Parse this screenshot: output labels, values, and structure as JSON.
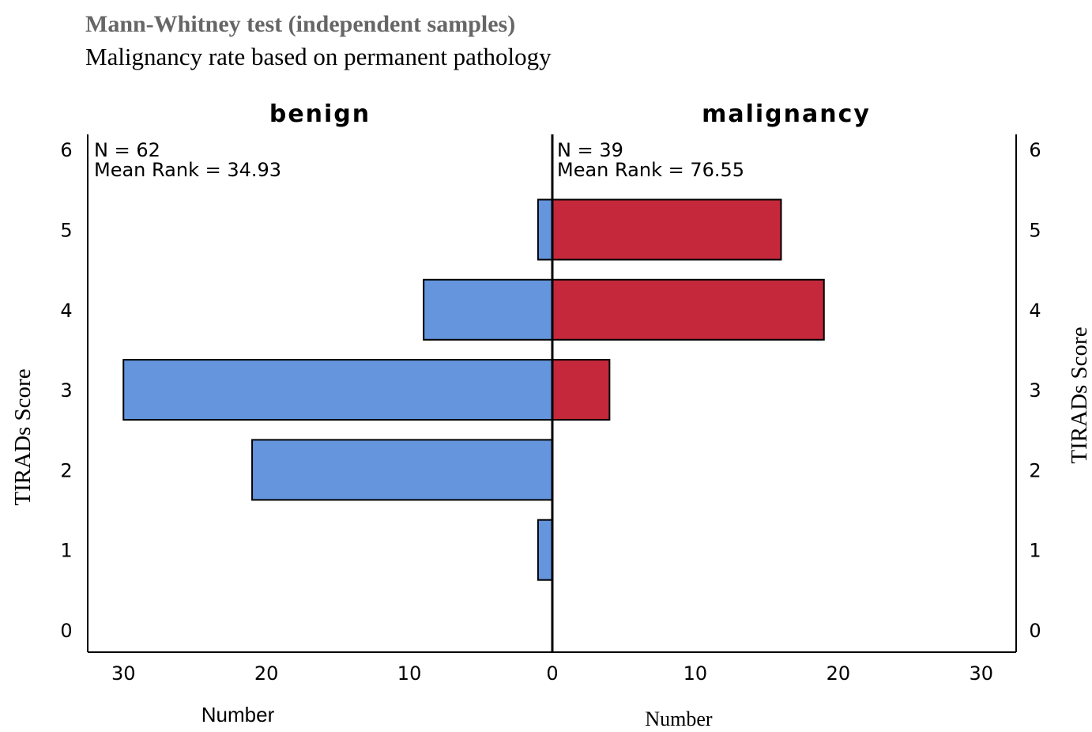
{
  "title": "Mann-Whitney test (independent samples)",
  "subtitle": "Malignancy rate based on permanent pathology",
  "chart_data": {
    "type": "bar",
    "orientation": "horizontal-population-pyramid",
    "ylabel": "TIRADs Score",
    "xlabel_left": "Number",
    "xlabel_right": "Number",
    "y_ticks": [
      "0",
      "1",
      "2",
      "3",
      "4",
      "5",
      "6"
    ],
    "x_ticks_left": [
      "30",
      "20",
      "10",
      "0"
    ],
    "x_ticks_right": [
      "0",
      "10",
      "20",
      "30"
    ],
    "xlim": [
      0,
      32.5
    ],
    "ylim": [
      -0.3,
      6.3
    ],
    "categories": [
      1,
      2,
      3,
      4,
      5
    ],
    "series": [
      {
        "name": "benign",
        "side": "left",
        "color": "#6495dd",
        "n_label": "N = 62",
        "rank_label": "Mean Rank = 34.93",
        "values": [
          1,
          21,
          30,
          9,
          1
        ]
      },
      {
        "name": "malignancy",
        "side": "right",
        "color": "#c4283a",
        "n_label": "N = 39",
        "rank_label": "Mean Rank = 76.55",
        "values": [
          0,
          0,
          4,
          19,
          16
        ]
      }
    ]
  }
}
